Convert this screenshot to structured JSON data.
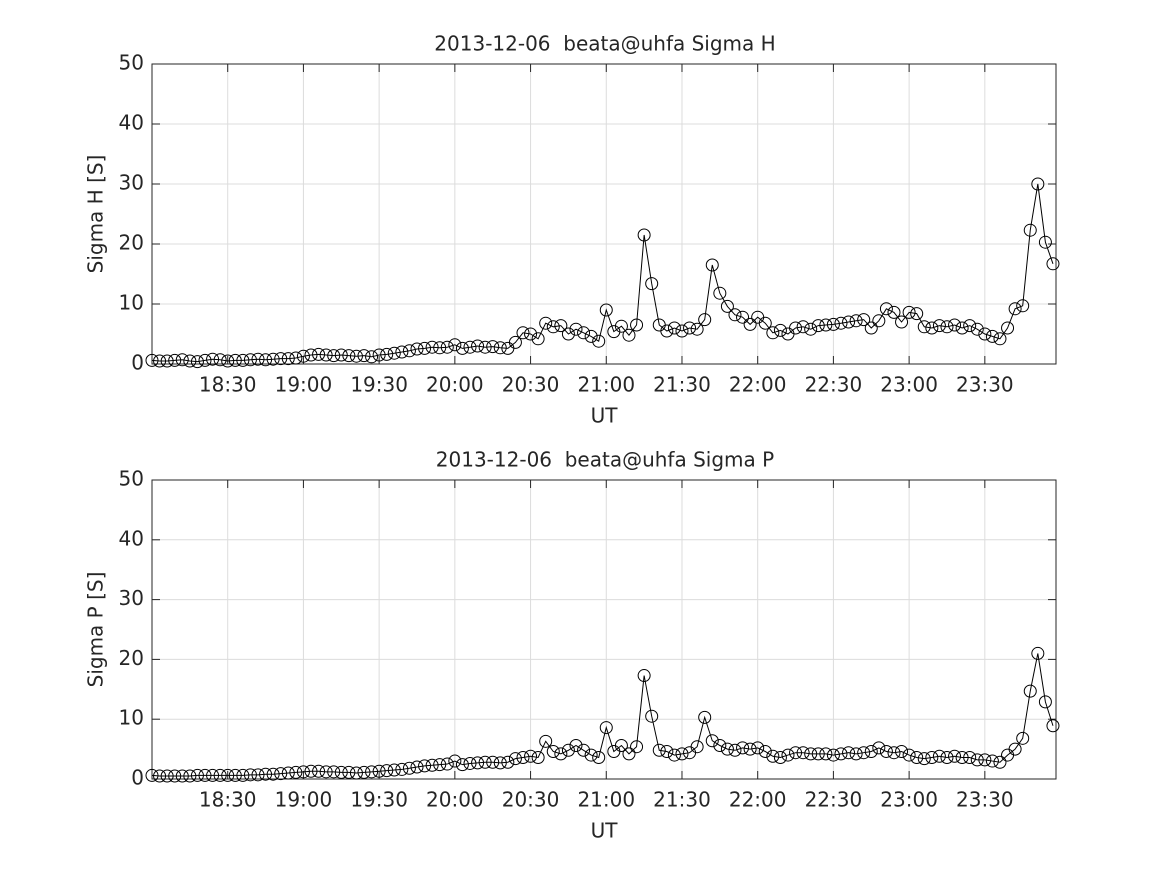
{
  "chart_data": [
    {
      "type": "line",
      "title": "2013-12-06  beata@uhfa Sigma H",
      "x_label": "UT",
      "y_label": "Sigma H [S]",
      "x": [
        18,
        18.05,
        18.1,
        18.15,
        18.2,
        18.25,
        18.3,
        18.35,
        18.4,
        18.45,
        18.5,
        18.55,
        18.6,
        18.65,
        18.7,
        18.75,
        18.8,
        18.85,
        18.9,
        18.95,
        19,
        19.05,
        19.1,
        19.15,
        19.2,
        19.25,
        19.3,
        19.35,
        19.4,
        19.45,
        19.5,
        19.55,
        19.6,
        19.65,
        19.7,
        19.75,
        19.8,
        19.85,
        19.9,
        19.95,
        20,
        20.05,
        20.1,
        20.15,
        20.2,
        20.25,
        20.3,
        20.35,
        20.4,
        20.45,
        20.5,
        20.55,
        20.6,
        20.65,
        20.7,
        20.75,
        20.8,
        20.85,
        20.9,
        20.95,
        21,
        21.05,
        21.1,
        21.15,
        21.2,
        21.25,
        21.3,
        21.35,
        21.4,
        21.45,
        21.5,
        21.55,
        21.6,
        21.65,
        21.7,
        21.75,
        21.8,
        21.85,
        21.9,
        21.95,
        22,
        22.05,
        22.1,
        22.15,
        22.2,
        22.25,
        22.3,
        22.35,
        22.4,
        22.45,
        22.5,
        22.55,
        22.6,
        22.65,
        22.7,
        22.75,
        22.8,
        22.85,
        22.9,
        22.95,
        23,
        23.05,
        23.1,
        23.15,
        23.2,
        23.25,
        23.3,
        23.35,
        23.4,
        23.45,
        23.5,
        23.55,
        23.6,
        23.65,
        23.7,
        23.75,
        23.8,
        23.85,
        23.9,
        23.95
      ],
      "values": [
        0.6,
        0.5,
        0.5,
        0.6,
        0.7,
        0.5,
        0.4,
        0.6,
        0.8,
        0.7,
        0.5,
        0.6,
        0.6,
        0.7,
        0.8,
        0.7,
        0.8,
        0.9,
        0.9,
        1.0,
        1.3,
        1.5,
        1.6,
        1.5,
        1.4,
        1.5,
        1.4,
        1.3,
        1.4,
        1.2,
        1.5,
        1.6,
        1.8,
        2.0,
        2.2,
        2.5,
        2.6,
        2.8,
        2.7,
        2.8,
        3.2,
        2.6,
        2.8,
        3.0,
        2.8,
        2.9,
        2.7,
        2.6,
        3.6,
        5.2,
        5.0,
        4.2,
        6.8,
        6.2,
        6.4,
        5.0,
        5.8,
        5.2,
        4.6,
        3.8,
        9.0,
        5.4,
        6.3,
        4.8,
        6.5,
        21.5,
        13.4,
        6.5,
        5.5,
        6.0,
        5.5,
        6.0,
        5.8,
        7.4,
        16.5,
        11.8,
        9.6,
        8.2,
        7.8,
        6.6,
        7.8,
        6.8,
        5.2,
        5.6,
        5.0,
        6.0,
        6.2,
        5.8,
        6.4,
        6.5,
        6.6,
        6.8,
        7.0,
        7.2,
        7.4,
        6.0,
        7.2,
        9.2,
        8.6,
        7.0,
        8.6,
        8.4,
        6.2,
        6.0,
        6.4,
        6.2,
        6.5,
        6.0,
        6.4,
        5.8,
        5.0,
        4.6,
        4.2,
        6.0,
        9.2,
        9.7,
        22.3,
        30.0,
        20.3,
        16.7
      ],
      "color": "#000000",
      "marker": "open-circle",
      "xlim": [
        18,
        23.97
      ],
      "xticks": [
        {
          "value": 18.5,
          "label": "18:30"
        },
        {
          "value": 19,
          "label": "19:00"
        },
        {
          "value": 19.5,
          "label": "19:30"
        },
        {
          "value": 20,
          "label": "20:00"
        },
        {
          "value": 20.5,
          "label": "20:30"
        },
        {
          "value": 21,
          "label": "21:00"
        },
        {
          "value": 21.5,
          "label": "21:30"
        },
        {
          "value": 22,
          "label": "22:00"
        },
        {
          "value": 22.5,
          "label": "22:30"
        },
        {
          "value": 23,
          "label": "23:00"
        },
        {
          "value": 23.5,
          "label": "23:30"
        }
      ],
      "ylim": [
        0,
        50
      ],
      "yticks": [
        0,
        10,
        20,
        30,
        40,
        50
      ],
      "grid": true
    },
    {
      "type": "line",
      "title": "2013-12-06  beata@uhfa Sigma P",
      "x_label": "UT",
      "y_label": "Sigma P [S]",
      "x": [
        18,
        18.05,
        18.1,
        18.15,
        18.2,
        18.25,
        18.3,
        18.35,
        18.4,
        18.45,
        18.5,
        18.55,
        18.6,
        18.65,
        18.7,
        18.75,
        18.8,
        18.85,
        18.9,
        18.95,
        19,
        19.05,
        19.1,
        19.15,
        19.2,
        19.25,
        19.3,
        19.35,
        19.4,
        19.45,
        19.5,
        19.55,
        19.6,
        19.65,
        19.7,
        19.75,
        19.8,
        19.85,
        19.9,
        19.95,
        20,
        20.05,
        20.1,
        20.15,
        20.2,
        20.25,
        20.3,
        20.35,
        20.4,
        20.45,
        20.5,
        20.55,
        20.6,
        20.65,
        20.7,
        20.75,
        20.8,
        20.85,
        20.9,
        20.95,
        21,
        21.05,
        21.1,
        21.15,
        21.2,
        21.25,
        21.3,
        21.35,
        21.4,
        21.45,
        21.5,
        21.55,
        21.6,
        21.65,
        21.7,
        21.75,
        21.8,
        21.85,
        21.9,
        21.95,
        22,
        22.05,
        22.1,
        22.15,
        22.2,
        22.25,
        22.3,
        22.35,
        22.4,
        22.45,
        22.5,
        22.55,
        22.6,
        22.65,
        22.7,
        22.75,
        22.8,
        22.85,
        22.9,
        22.95,
        23,
        23.05,
        23.1,
        23.15,
        23.2,
        23.25,
        23.3,
        23.35,
        23.4,
        23.45,
        23.5,
        23.55,
        23.6,
        23.65,
        23.7,
        23.75,
        23.8,
        23.85,
        23.9,
        23.95
      ],
      "values": [
        0.6,
        0.5,
        0.5,
        0.5,
        0.5,
        0.5,
        0.6,
        0.6,
        0.6,
        0.6,
        0.6,
        0.6,
        0.6,
        0.7,
        0.7,
        0.8,
        0.8,
        0.9,
        1.0,
        1.1,
        1.2,
        1.3,
        1.3,
        1.2,
        1.2,
        1.1,
        1.1,
        1.0,
        1.1,
        1.2,
        1.3,
        1.4,
        1.5,
        1.6,
        1.8,
        2.0,
        2.2,
        2.3,
        2.4,
        2.5,
        3.0,
        2.4,
        2.6,
        2.7,
        2.8,
        2.8,
        2.7,
        2.8,
        3.4,
        3.6,
        3.8,
        3.6,
        6.3,
        4.6,
        4.2,
        4.8,
        5.6,
        4.8,
        4.0,
        3.6,
        8.6,
        4.6,
        5.6,
        4.2,
        5.4,
        17.3,
        10.5,
        4.8,
        4.6,
        4.0,
        4.2,
        4.4,
        5.4,
        10.3,
        6.4,
        5.6,
        5.0,
        4.8,
        5.2,
        5.0,
        5.2,
        4.6,
        3.8,
        3.6,
        4.0,
        4.4,
        4.4,
        4.2,
        4.2,
        4.2,
        4.0,
        4.2,
        4.4,
        4.2,
        4.4,
        4.6,
        5.2,
        4.6,
        4.4,
        4.6,
        4.0,
        3.6,
        3.4,
        3.6,
        3.8,
        3.6,
        3.8,
        3.6,
        3.6,
        3.2,
        3.2,
        3.0,
        2.8,
        4.0,
        5.0,
        6.8,
        14.7,
        21.0,
        12.9,
        8.9
      ],
      "color": "#000000",
      "marker": "open-circle",
      "xlim": [
        18,
        23.97
      ],
      "xticks": [
        {
          "value": 18.5,
          "label": "18:30"
        },
        {
          "value": 19,
          "label": "19:00"
        },
        {
          "value": 19.5,
          "label": "19:30"
        },
        {
          "value": 20,
          "label": "20:00"
        },
        {
          "value": 20.5,
          "label": "20:30"
        },
        {
          "value": 21,
          "label": "21:00"
        },
        {
          "value": 21.5,
          "label": "21:30"
        },
        {
          "value": 22,
          "label": "22:00"
        },
        {
          "value": 22.5,
          "label": "22:30"
        },
        {
          "value": 23,
          "label": "23:00"
        },
        {
          "value": 23.5,
          "label": "23:30"
        }
      ],
      "ylim": [
        0,
        50
      ],
      "yticks": [
        0,
        10,
        20,
        30,
        40,
        50
      ],
      "grid": true
    }
  ]
}
